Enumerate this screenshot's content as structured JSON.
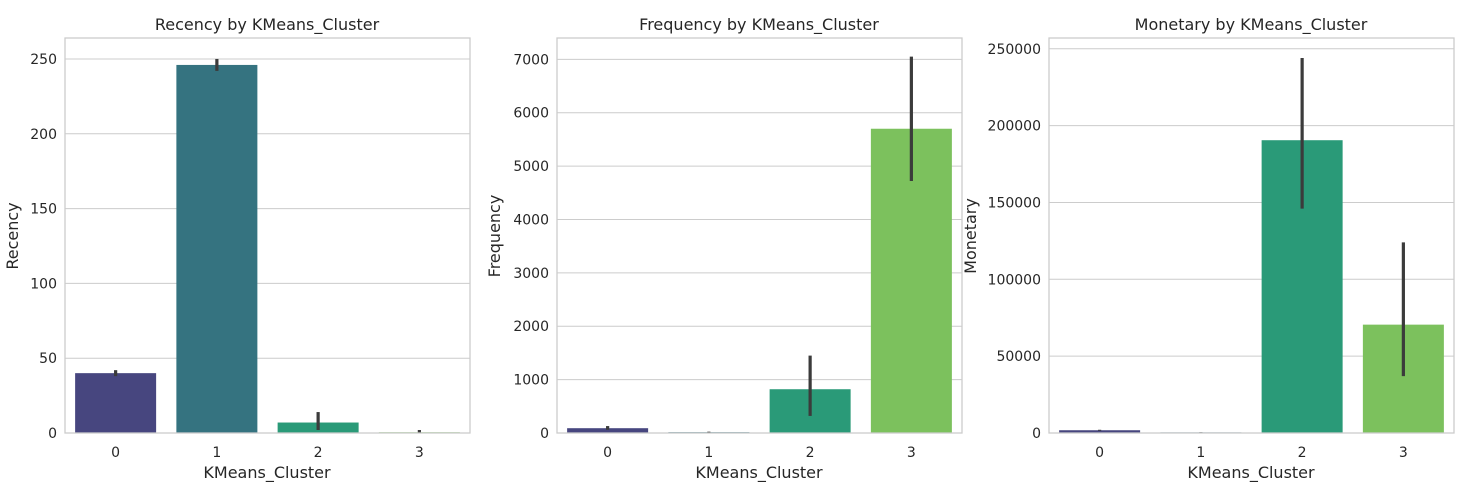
{
  "chart_data": [
    {
      "type": "bar",
      "title": "Recency by KMeans_Cluster",
      "xlabel": "KMeans_Cluster",
      "ylabel": "Recency",
      "categories": [
        "0",
        "1",
        "2",
        "3"
      ],
      "values": [
        40,
        246,
        7,
        0.5
      ],
      "error_low": [
        38,
        242,
        2,
        0
      ],
      "error_high": [
        42,
        250,
        14,
        2
      ],
      "ylim": [
        0,
        264
      ],
      "yticks": [
        0,
        50,
        100,
        150,
        200,
        250
      ],
      "ytick_labels": [
        "0",
        "50",
        "100",
        "150",
        "200",
        "250"
      ],
      "colors": [
        "#47467f",
        "#357380",
        "#2a9a78",
        "#7cc15d"
      ],
      "grid": true
    },
    {
      "type": "bar",
      "title": "Frequency by KMeans_Cluster",
      "xlabel": "KMeans_Cluster",
      "ylabel": "Frequency",
      "categories": [
        "0",
        "1",
        "2",
        "3"
      ],
      "values": [
        90,
        15,
        820,
        5700
      ],
      "error_low": [
        60,
        5,
        320,
        4720
      ],
      "error_high": [
        130,
        25,
        1450,
        7050
      ],
      "ylim": [
        0,
        7400
      ],
      "yticks": [
        0,
        1000,
        2000,
        3000,
        4000,
        5000,
        6000,
        7000
      ],
      "ytick_labels": [
        "0",
        "1000",
        "2000",
        "3000",
        "4000",
        "5000",
        "6000",
        "7000"
      ],
      "colors": [
        "#47467f",
        "#357380",
        "#2a9a78",
        "#7cc15d"
      ],
      "grid": true
    },
    {
      "type": "bar",
      "title": "Monetary by KMeans_Cluster",
      "xlabel": "KMeans_Cluster",
      "ylabel": "Monetary",
      "categories": [
        "0",
        "1",
        "2",
        "3"
      ],
      "values": [
        1800,
        400,
        190500,
        70500
      ],
      "error_low": [
        1500,
        300,
        146000,
        37000
      ],
      "error_high": [
        2100,
        500,
        244000,
        124000
      ],
      "ylim": [
        0,
        257000
      ],
      "yticks": [
        0,
        50000,
        100000,
        150000,
        200000,
        250000
      ],
      "ytick_labels": [
        "0",
        "50000",
        "100000",
        "150000",
        "200000",
        "250000"
      ],
      "colors": [
        "#47467f",
        "#357380",
        "#2a9a78",
        "#7cc15d"
      ],
      "grid": true
    }
  ]
}
